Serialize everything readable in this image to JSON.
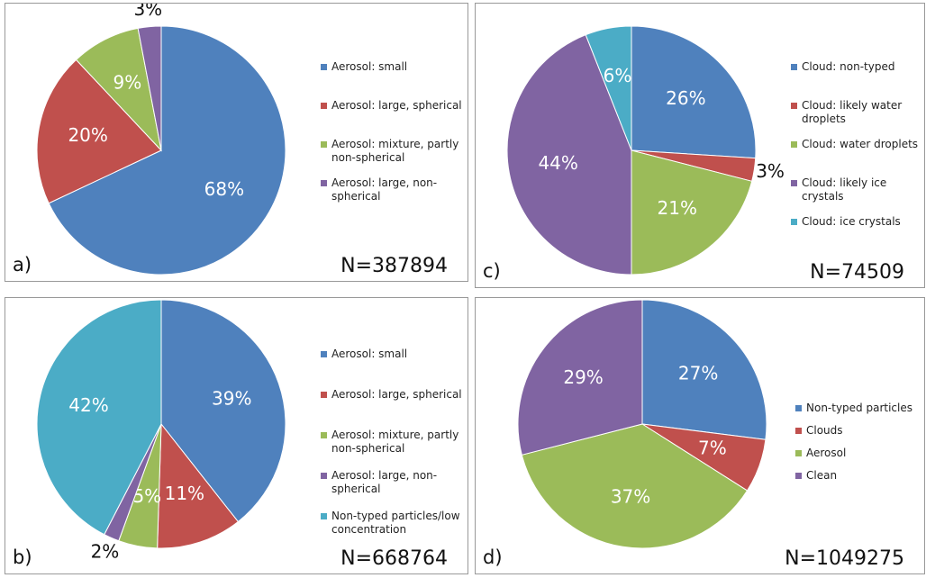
{
  "chart_data": [
    {
      "type": "pie",
      "panel_label": "a)",
      "annotation": "N=387894",
      "categories": [
        "Aerosol: small",
        "Aerosol: large, spherical",
        "Aerosol: mixture, partly non-spherical",
        "Aerosol: large, non-spherical"
      ],
      "values": [
        68,
        20,
        9,
        3
      ],
      "value_labels": [
        "68%",
        "20%",
        "9%",
        "3%"
      ],
      "colors": [
        "#4f81bd",
        "#c0504d",
        "#9bbb59",
        "#8064a2"
      ]
    },
    {
      "type": "pie",
      "panel_label": "c)",
      "annotation": "N=74509",
      "categories": [
        "Cloud: non-typed",
        "Cloud: likely water droplets",
        "Cloud: water droplets",
        "Cloud: likely ice crystals",
        "Cloud: ice crystals"
      ],
      "values": [
        26,
        3,
        21,
        44,
        6
      ],
      "value_labels": [
        "26%",
        "3%",
        "21%",
        "44%",
        "6%"
      ],
      "colors": [
        "#4f81bd",
        "#c0504d",
        "#9bbb59",
        "#8064a2",
        "#4bacc6"
      ]
    },
    {
      "type": "pie",
      "panel_label": "b)",
      "annotation": "N=668764",
      "categories": [
        "Aerosol: small",
        "Aerosol: large, spherical",
        "Aerosol: mixture, partly non-spherical",
        "Aerosol: large, non-spherical",
        "Non-typed particles/low concentration"
      ],
      "values": [
        39,
        11,
        5,
        2,
        42
      ],
      "value_labels": [
        "39%",
        "11%",
        "5%",
        "2%",
        "42%"
      ],
      "colors": [
        "#4f81bd",
        "#c0504d",
        "#9bbb59",
        "#8064a2",
        "#4bacc6"
      ]
    },
    {
      "type": "pie",
      "panel_label": "d)",
      "annotation": "N=1049275",
      "categories": [
        "Non-typed particles",
        "Clouds",
        "Aerosol",
        "Clean"
      ],
      "values": [
        27,
        7,
        37,
        29
      ],
      "value_labels": [
        "27%",
        "7%",
        "37%",
        "29%"
      ],
      "colors": [
        "#4f81bd",
        "#c0504d",
        "#9bbb59",
        "#8064a2"
      ]
    }
  ]
}
